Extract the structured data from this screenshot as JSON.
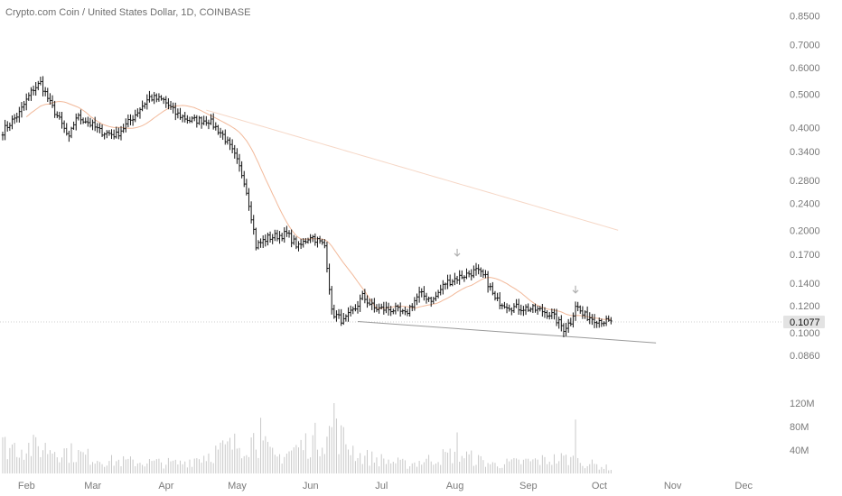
{
  "header": {
    "title": "Crypto.com Coin / United States Dollar, 1D, COINBASE"
  },
  "colors": {
    "candle": "#111111",
    "ma": "#f2b99a",
    "ma_long": "#f6d7c6",
    "trendline": "#9a9a9a",
    "volume": "#c8c8c8",
    "marker": "#b0b0b0"
  },
  "chart_data": {
    "type": "bar",
    "title": "Crypto.com Coin / United States Dollar, 1D, COINBASE",
    "scale": "log",
    "y_ticks": [
      "0.8500",
      "0.7000",
      "0.6000",
      "0.5000",
      "0.4000",
      "0.3400",
      "0.2800",
      "0.2400",
      "0.2000",
      "0.1700",
      "0.1400",
      "0.1200",
      "0.1000",
      "0.0860"
    ],
    "last_price": "0.1077",
    "x_labels": [
      "Feb",
      "Mar",
      "Apr",
      "May",
      "Jun",
      "Jul",
      "Aug",
      "Sep",
      "Oct",
      "Nov",
      "Dec"
    ],
    "volume_ticks": [
      "120M",
      "80M",
      "40M"
    ],
    "ylim": [
      0.078,
      0.89
    ],
    "trendline": {
      "from": [
        "2022-06-24",
        0.108
      ],
      "to": [
        "2022-10-28",
        0.0935
      ]
    },
    "price_anchors": [
      [
        "2022-01-25",
        0.39
      ],
      [
        "2022-02-01",
        0.44
      ],
      [
        "2022-02-07",
        0.52
      ],
      [
        "2022-02-10",
        0.54
      ],
      [
        "2022-02-14",
        0.47
      ],
      [
        "2022-02-22",
        0.37
      ],
      [
        "2022-02-25",
        0.43
      ],
      [
        "2022-03-01",
        0.42
      ],
      [
        "2022-03-07",
        0.39
      ],
      [
        "2022-03-14",
        0.38
      ],
      [
        "2022-03-20",
        0.42
      ],
      [
        "2022-03-28",
        0.49
      ],
      [
        "2022-04-03",
        0.48
      ],
      [
        "2022-04-08",
        0.44
      ],
      [
        "2022-04-14",
        0.42
      ],
      [
        "2022-04-22",
        0.42
      ],
      [
        "2022-04-28",
        0.38
      ],
      [
        "2022-05-03",
        0.33
      ],
      [
        "2022-05-07",
        0.28
      ],
      [
        "2022-05-12",
        0.18
      ],
      [
        "2022-05-17",
        0.19
      ],
      [
        "2022-05-25",
        0.195
      ],
      [
        "2022-05-30",
        0.178
      ],
      [
        "2022-06-04",
        0.193
      ],
      [
        "2022-06-10",
        0.18
      ],
      [
        "2022-06-13",
        0.115
      ],
      [
        "2022-06-18",
        0.108
      ],
      [
        "2022-06-23",
        0.118
      ],
      [
        "2022-06-26",
        0.128
      ],
      [
        "2022-07-01",
        0.118
      ],
      [
        "2022-07-10",
        0.117
      ],
      [
        "2022-07-14",
        0.113
      ],
      [
        "2022-07-20",
        0.13
      ],
      [
        "2022-07-26",
        0.125
      ],
      [
        "2022-07-31",
        0.14
      ],
      [
        "2022-08-05",
        0.145
      ],
      [
        "2022-08-13",
        0.152
      ],
      [
        "2022-08-17",
        0.145
      ],
      [
        "2022-08-21",
        0.125
      ],
      [
        "2022-08-28",
        0.119
      ],
      [
        "2022-09-04",
        0.118
      ],
      [
        "2022-09-10",
        0.116
      ],
      [
        "2022-09-14",
        0.113
      ],
      [
        "2022-09-19",
        0.103
      ],
      [
        "2022-09-22",
        0.108
      ],
      [
        "2022-09-24",
        0.121
      ],
      [
        "2022-09-27",
        0.113
      ],
      [
        "2022-10-02",
        0.11
      ],
      [
        "2022-10-09",
        0.107
      ]
    ],
    "volume_anchors": [
      [
        "2022-01-25",
        55
      ],
      [
        "2022-02-15",
        50
      ],
      [
        "2022-03-10",
        25
      ],
      [
        "2022-04-10",
        20
      ],
      [
        "2022-05-12",
        70
      ],
      [
        "2022-05-20",
        30
      ],
      [
        "2022-06-14",
        85
      ],
      [
        "2022-06-25",
        35
      ],
      [
        "2022-07-15",
        18
      ],
      [
        "2022-08-05",
        40
      ],
      [
        "2022-08-20",
        18
      ],
      [
        "2022-09-20",
        30
      ],
      [
        "2022-10-09",
        10
      ]
    ],
    "volume_spikes": [
      [
        "2022-06-14",
        120
      ],
      [
        "2022-08-05",
        70
      ],
      [
        "2022-09-24",
        92
      ],
      [
        "2022-05-14",
        95
      ]
    ]
  }
}
